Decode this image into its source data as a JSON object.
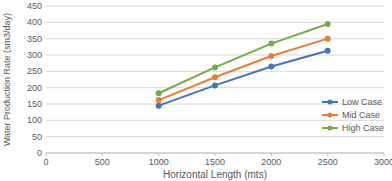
{
  "chart_data": {
    "type": "line",
    "x_label": "Horizontal Length (mts)",
    "y_label": "Water Production Rate (sm3/day)",
    "x": [
      1000,
      1500,
      2000,
      2500
    ],
    "series": [
      {
        "name": "Low Case",
        "color": "#4472c4",
        "values": [
          145,
          207,
          265,
          313
        ]
      },
      {
        "name": "Mid Case",
        "color": "#ed7d31",
        "values": [
          162,
          232,
          297,
          350
        ]
      },
      {
        "name": "High Case",
        "color": "#70ad47",
        "values": [
          183,
          262,
          335,
          395
        ]
      }
    ],
    "xlim": [
      0,
      3000
    ],
    "xticks": [
      0,
      500,
      1000,
      1500,
      2000,
      2500,
      3000
    ],
    "ylim": [
      0,
      450
    ],
    "yticks": [
      0,
      50,
      100,
      150,
      200,
      250,
      300,
      350,
      400,
      450
    ],
    "grid": true,
    "legend": "lower right",
    "marker": "circle",
    "line_style": "solid"
  }
}
